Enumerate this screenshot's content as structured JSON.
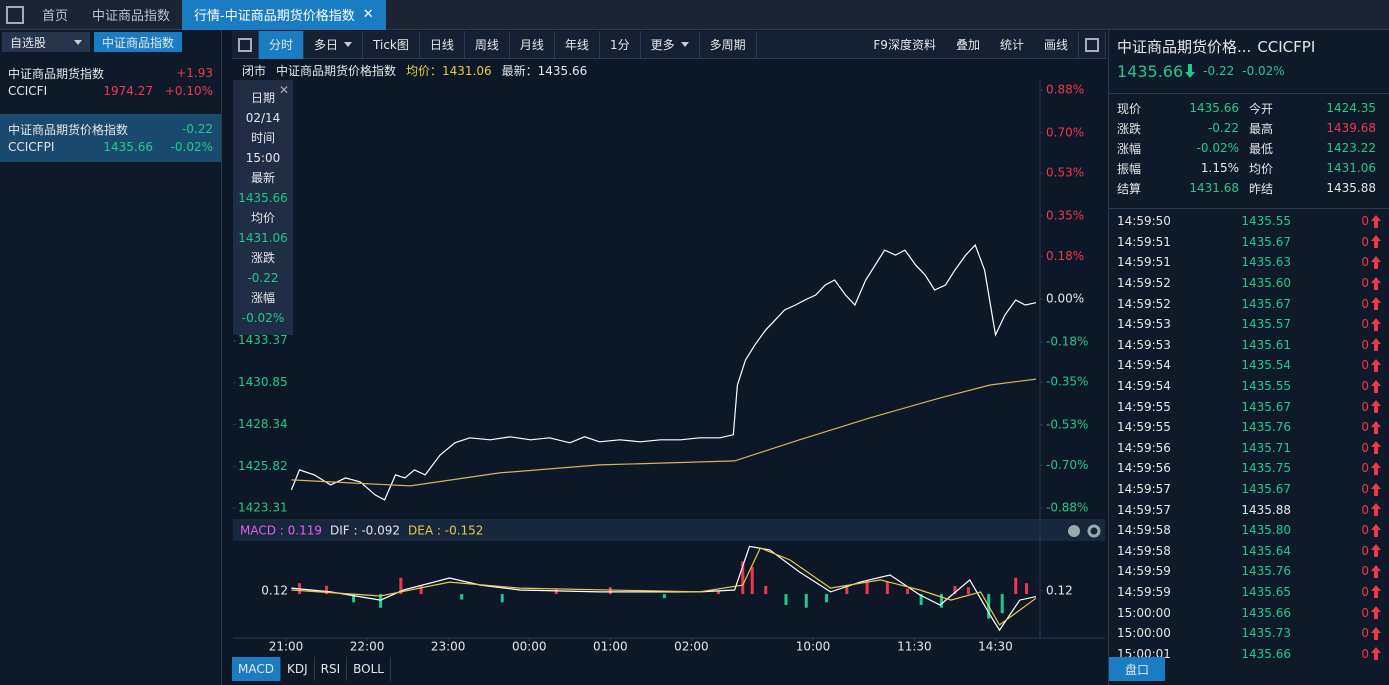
{
  "tabs": {
    "home": "首页",
    "index": "中证商品指数",
    "active": "行情-中证商品期货价格指数"
  },
  "sidebar": {
    "watchlist": "自选股",
    "tab": "中证商品指数",
    "items": [
      {
        "name": "中证商品期货指数",
        "change": "+1.93",
        "code": "CCICFI",
        "price": "1974.27",
        "pct": "+0.10%"
      },
      {
        "name": "中证商品期货价格指数",
        "change": "-0.22",
        "code": "CCICFPI",
        "price": "1435.66",
        "pct": "-0.02%"
      }
    ]
  },
  "toolbar": {
    "left": [
      "分时",
      "多日",
      "Tick图",
      "日线",
      "周线",
      "月线",
      "年线",
      "1分",
      "更多",
      "多周期"
    ],
    "right": [
      "F9深度资料",
      "叠加",
      "统计",
      "画线"
    ]
  },
  "info_bar": [
    "闭市",
    "中证商品期货价格指数",
    "均价：1431.06",
    "最新：1435.66"
  ],
  "popup": [
    [
      "日期",
      "02/14"
    ],
    [
      "时间",
      "15:00"
    ],
    [
      "最新",
      "1435.66"
    ],
    [
      "均价",
      "1431.06"
    ],
    [
      "涨跌",
      "-0.22"
    ],
    [
      "涨幅",
      "-0.02%"
    ]
  ],
  "chart_data": [
    {
      "type": "line",
      "xlim": [
        0,
        555
      ],
      "ylim": [
        1423.31,
        1448.45
      ],
      "y2lim": [
        -0.88,
        0.88
      ],
      "yticks": [
        1433.37,
        1430.85,
        1428.34,
        1425.82,
        1423.31
      ],
      "y2ticks": [
        {
          "value": 0.88,
          "label": "0.88%"
        },
        {
          "value": 0.7,
          "label": "0.70%"
        },
        {
          "value": 0.53,
          "label": "0.53%"
        },
        {
          "value": 0.35,
          "label": "0.35%"
        },
        {
          "value": 0.18,
          "label": "0.18%"
        },
        {
          "value": 0,
          "label": "0.00%"
        },
        {
          "value": -0.18,
          "label": "-0.18%"
        },
        {
          "value": -0.35,
          "label": "-0.35%"
        },
        {
          "value": -0.53,
          "label": "-0.53%"
        },
        {
          "value": -0.7,
          "label": "-0.70%"
        },
        {
          "value": -0.88,
          "label": "-0.88%"
        }
      ],
      "xticks": [
        {
          "value": 0,
          "label": "21:00"
        },
        {
          "value": 60,
          "label": "22:00"
        },
        {
          "value": 120,
          "label": "23:00"
        },
        {
          "value": 180,
          "label": "00:00"
        },
        {
          "value": 240,
          "label": "01:00"
        },
        {
          "value": 300,
          "label": "02:00"
        },
        {
          "value": 390,
          "label": "10:00"
        },
        {
          "value": 465,
          "label": "11:30"
        },
        {
          "value": 525,
          "label": "14:30"
        }
      ],
      "series": [
        {
          "color": "#ffffff",
          "x": [
            4,
            10,
            21,
            33,
            44,
            55,
            66,
            73,
            81,
            88,
            95,
            103,
            114,
            125,
            136,
            151,
            166,
            181,
            195,
            210,
            221,
            232,
            247,
            262,
            277,
            292,
            306,
            321,
            331,
            334,
            340,
            347,
            355,
            362,
            369,
            377,
            384,
            392,
            399,
            406,
            414,
            421,
            429,
            436,
            443,
            451,
            458,
            466,
            473,
            480,
            488,
            495,
            503,
            510,
            517,
            525,
            532,
            540,
            547,
            555
          ],
          "values": [
            1424.4,
            1425.6,
            1425.3,
            1424.7,
            1425.12,
            1424.88,
            1424.1,
            1423.8,
            1425.3,
            1425.12,
            1425.6,
            1425.3,
            1426.5,
            1427.23,
            1427.53,
            1427.41,
            1427.59,
            1427.41,
            1427.53,
            1427.23,
            1427.59,
            1427.29,
            1427.41,
            1427.29,
            1427.41,
            1427.41,
            1427.53,
            1427.53,
            1427.71,
            1430.71,
            1432.21,
            1433.12,
            1434.02,
            1434.62,
            1435.22,
            1435.52,
            1435.82,
            1436.12,
            1436.72,
            1437.02,
            1436.12,
            1435.52,
            1437.02,
            1437.92,
            1438.82,
            1438.52,
            1438.82,
            1437.92,
            1437.32,
            1436.42,
            1436.72,
            1437.62,
            1438.52,
            1439.13,
            1437.62,
            1433.72,
            1434.92,
            1435.82,
            1435.52,
            1435.66
          ]
        },
        {
          "color": "#d9b35a",
          "x": [
            4,
            92,
            158,
            232,
            332,
            380,
            432,
            484,
            521,
            555
          ],
          "values": [
            1425.0,
            1424.64,
            1425.42,
            1425.9,
            1426.14,
            1427.41,
            1428.73,
            1429.93,
            1430.71,
            1431.06
          ]
        }
      ]
    },
    {
      "type": "macd",
      "xlim": [
        0,
        555
      ],
      "ylim": [
        -1.5,
        1.8
      ],
      "yticks": [
        0.12
      ],
      "labels": [
        "MACD : 0.119",
        "DIF : -0.092",
        "DEA : -0.152"
      ],
      "label_colors": [
        "#e060f0",
        "#e6e6e6",
        "#e8c84a"
      ],
      "series": [
        {
          "color": "#ffffff",
          "x": [
            4,
            33,
            70,
            87,
            121,
            144,
            173,
            232,
            306,
            332,
            343,
            358,
            380,
            403,
            425,
            447,
            469,
            484,
            506,
            521,
            528,
            543,
            555
          ],
          "values": [
            0.22,
            0.08,
            -0.22,
            0.15,
            0.59,
            0.33,
            0.15,
            0.08,
            0.08,
            0.15,
            1.75,
            1.62,
            0.81,
            0.08,
            0.44,
            0.7,
            -0.03,
            -0.4,
            0.52,
            -0.77,
            -1.32,
            -0.22,
            -0.092
          ]
        },
        {
          "color": "#e8c84a",
          "x": [
            4,
            70,
            121,
            173,
            306,
            338,
            351,
            373,
            403,
            440,
            469,
            492,
            514,
            528,
            555
          ],
          "values": [
            0.15,
            -0.07,
            0.44,
            0.22,
            0.08,
            0.33,
            1.69,
            1.25,
            0.22,
            0.52,
            0.15,
            -0.22,
            0.08,
            -1.13,
            -0.152
          ]
        }
      ],
      "histogram": {
        "up_color": "#f0364a",
        "down_color": "#1fc98a",
        "x": [
          10,
          30,
          50,
          70,
          85,
          100,
          130,
          160,
          200,
          240,
          280,
          320,
          338,
          345,
          355,
          370,
          385,
          400,
          415,
          430,
          445,
          460,
          470,
          485,
          495,
          505,
          520,
          530,
          540,
          548
        ],
        "values": [
          0.4,
          0.3,
          -0.3,
          -0.5,
          0.6,
          0.3,
          -0.2,
          -0.3,
          0.2,
          0.25,
          -0.15,
          0.1,
          1.2,
          1.0,
          0.3,
          -0.4,
          -0.5,
          -0.3,
          0.3,
          0.5,
          0.45,
          0.2,
          -0.4,
          -0.5,
          0.3,
          0.25,
          -0.9,
          -0.7,
          0.6,
          0.4
        ]
      }
    }
  ],
  "indicator_tabs": [
    "MACD",
    "KDJ",
    "RSI",
    "BOLL"
  ],
  "quote": {
    "title": "中证商品期货价格...",
    "code": "CCICFPI",
    "price": "1435.66",
    "change": "-0.22",
    "pct": "-0.02%",
    "rows": [
      [
        "现价",
        "1435.66",
        "今开",
        "1424.35"
      ],
      [
        "涨跌",
        "-0.22",
        "最高",
        "1439.68"
      ],
      [
        "涨幅",
        "-0.02%",
        "最低",
        "1423.22"
      ],
      [
        "振幅",
        "1.15%",
        "均价",
        "1431.06"
      ],
      [
        "结算",
        "1431.68",
        "昨结",
        "1435.88"
      ]
    ]
  },
  "ticks": [
    [
      "14:59:50",
      "1435.55",
      "0"
    ],
    [
      "14:59:51",
      "1435.67",
      "0"
    ],
    [
      "14:59:51",
      "1435.63",
      "0"
    ],
    [
      "14:59:52",
      "1435.60",
      "0"
    ],
    [
      "14:59:52",
      "1435.67",
      "0"
    ],
    [
      "14:59:53",
      "1435.57",
      "0"
    ],
    [
      "14:59:53",
      "1435.61",
      "0"
    ],
    [
      "14:59:54",
      "1435.54",
      "0"
    ],
    [
      "14:59:54",
      "1435.55",
      "0"
    ],
    [
      "14:59:55",
      "1435.67",
      "0"
    ],
    [
      "14:59:55",
      "1435.76",
      "0"
    ],
    [
      "14:59:56",
      "1435.71",
      "0"
    ],
    [
      "14:59:56",
      "1435.75",
      "0"
    ],
    [
      "14:59:57",
      "1435.67",
      "0"
    ],
    [
      "14:59:57",
      "1435.88",
      "0"
    ],
    [
      "14:59:58",
      "1435.80",
      "0"
    ],
    [
      "14:59:58",
      "1435.64",
      "0"
    ],
    [
      "14:59:59",
      "1435.76",
      "0"
    ],
    [
      "14:59:59",
      "1435.65",
      "0"
    ],
    [
      "15:00:00",
      "1435.66",
      "0"
    ],
    [
      "15:00:00",
      "1435.73",
      "0"
    ],
    [
      "15:00:01",
      "1435.66",
      "0"
    ]
  ],
  "button": "盘口"
}
